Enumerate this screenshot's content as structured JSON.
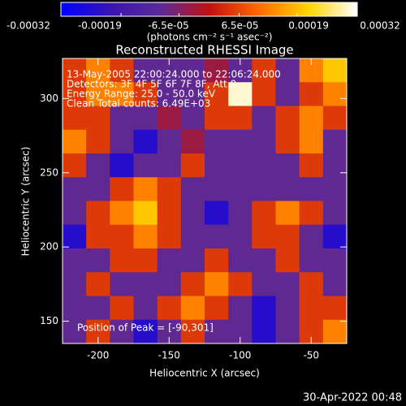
{
  "chart_data": {
    "type": "heatmap",
    "title": "Reconstructed RHESSI Image",
    "info": [
      "13-May-2005 22:00:24.000 to 22:06:24.000",
      "Detectors: 3F 4F 5F 6F 7F 8F, Att 0",
      "Energy Range: 25.0 - 50.0 keV",
      "Clean     Total counts: 6.49E+03"
    ],
    "annotation": "Position of Peak = [-90,301]",
    "xlabel": "Heliocentric X (arcsec)",
    "ylabel": "Heliocentric Y (arcsec)",
    "xlim": [
      -225,
      -25
    ],
    "xticks": [
      -200,
      -150,
      -100,
      -50
    ],
    "ylim": [
      135,
      327
    ],
    "yticks": [
      150,
      200,
      250,
      300
    ],
    "colorbar_label": "(photons cm⁻² s⁻¹ asec⁻²)",
    "zlim": [
      -0.00032,
      0.00032
    ],
    "zticks": [
      -0.00032,
      -0.00019,
      {
        "value": -6.5e-05,
        "label": "-6.5e-05"
      },
      {
        "value": 6.5e-05,
        "label": "6.5e-05"
      },
      0.00019,
      0.00032
    ],
    "colorscale": [
      "#0000ff",
      "#3a14b0",
      "#5a2a9a",
      "#c01010",
      "#ff6a00",
      "#ffd400",
      "#ffffff"
    ],
    "z": [
      [
        5e-05,
        0.00013,
        5e-05,
        -0.0001,
        -0.0001,
        -0.0001,
        -4e-05,
        -0.0001,
        5e-05,
        -0.0001,
        0.00013,
        0.0002
      ],
      [
        5e-05,
        0.00013,
        0.00013,
        5e-05,
        -0.0001,
        -0.0001,
        5e-05,
        0.0003,
        5e-05,
        -0.0001,
        5e-05,
        0.00013
      ],
      [
        5e-05,
        5e-05,
        -0.0001,
        -0.0001,
        -4e-05,
        -0.0001,
        5e-05,
        5e-05,
        -0.0001,
        5e-05,
        0.00013,
        5e-05
      ],
      [
        0.00013,
        5e-05,
        -0.0001,
        -0.00025,
        -0.0001,
        -4e-05,
        -0.0001,
        -0.0001,
        -0.0001,
        5e-05,
        0.00013,
        -0.0001
      ],
      [
        5e-05,
        -0.0001,
        -0.00025,
        -0.0001,
        -0.0001,
        5e-05,
        -0.0001,
        -0.0001,
        -0.0001,
        -0.0001,
        5e-05,
        -0.0001
      ],
      [
        -0.0001,
        -0.0001,
        5e-05,
        0.00013,
        5e-05,
        -0.0001,
        -0.0001,
        -0.0001,
        -0.0001,
        -0.0001,
        -0.0001,
        -0.0001
      ],
      [
        -0.0001,
        5e-05,
        0.00013,
        0.0002,
        5e-05,
        -0.0001,
        -0.00025,
        -0.0001,
        5e-05,
        0.00013,
        5e-05,
        -0.0001
      ],
      [
        -0.00025,
        5e-05,
        5e-05,
        0.00013,
        5e-05,
        -0.0001,
        -0.0001,
        -0.0001,
        5e-05,
        5e-05,
        -0.0001,
        -0.00025
      ],
      [
        -0.0001,
        -0.0001,
        5e-05,
        5e-05,
        -0.0001,
        -0.0001,
        5e-05,
        -0.0001,
        -0.0001,
        5e-05,
        -0.0001,
        -0.0001
      ],
      [
        -0.0001,
        5e-05,
        -0.0001,
        -0.0001,
        -0.0001,
        5e-05,
        0.00013,
        5e-05,
        -0.0001,
        -0.0001,
        5e-05,
        -0.0001
      ],
      [
        -0.0001,
        -0.0001,
        5e-05,
        -0.0001,
        5e-05,
        0.00013,
        5e-05,
        -0.0001,
        -0.00025,
        -0.0001,
        5e-05,
        5e-05
      ],
      [
        -0.0001,
        5e-05,
        -0.0001,
        -0.00025,
        -0.0001,
        5e-05,
        -0.0001,
        -0.0001,
        -0.00025,
        -0.0001,
        5e-05,
        0.00013
      ]
    ],
    "timestamp": "30-Apr-2022 00:48"
  }
}
